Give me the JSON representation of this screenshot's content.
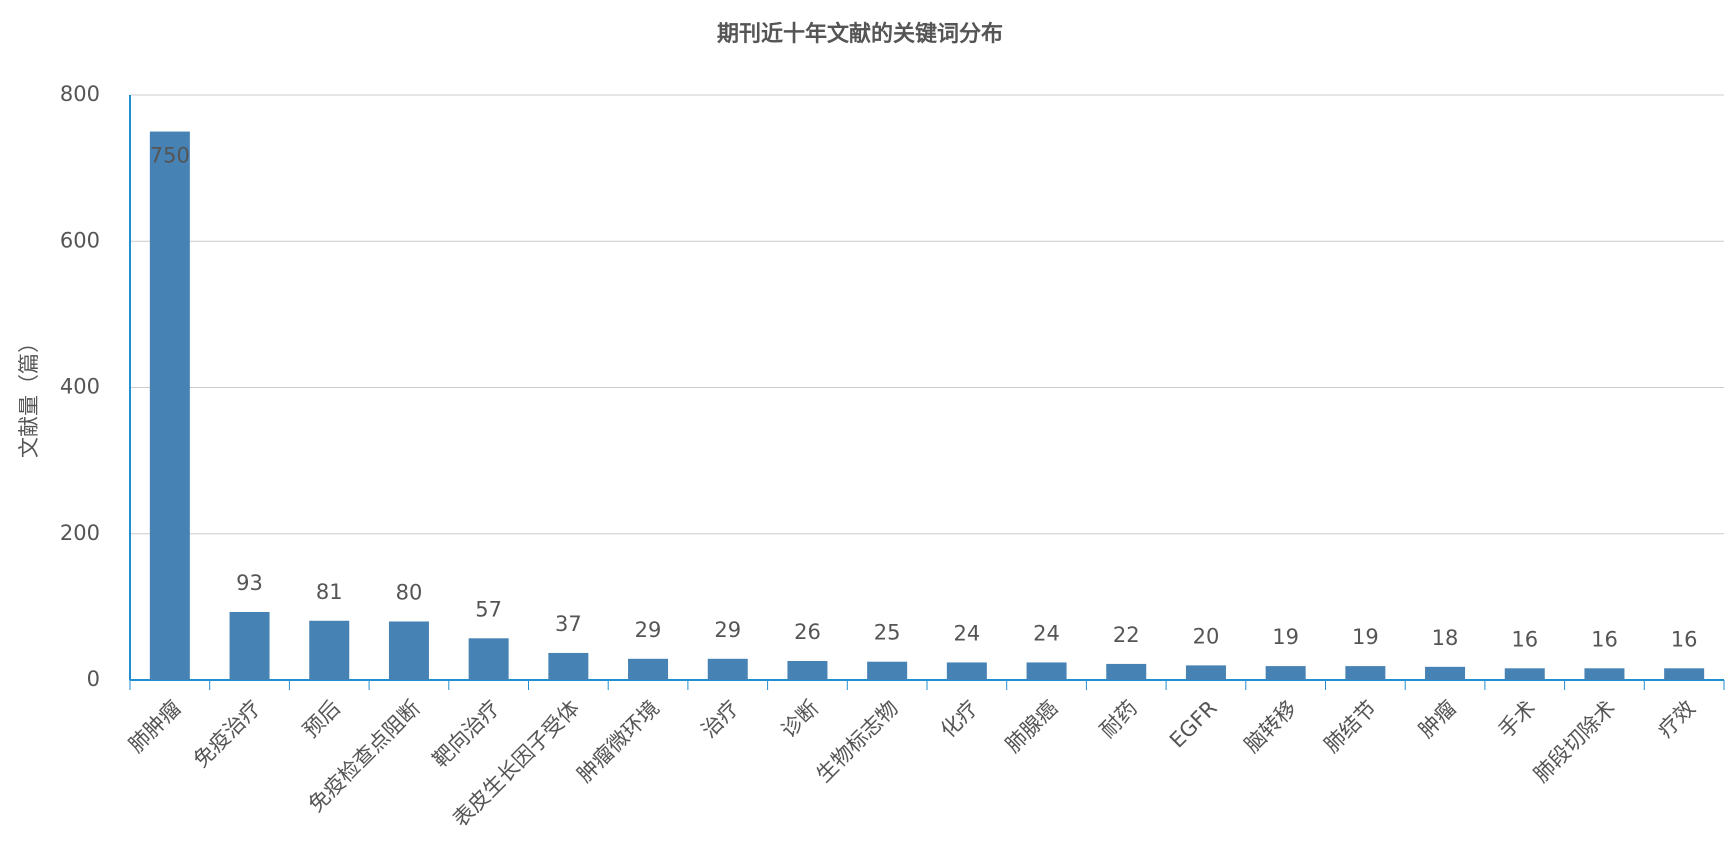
{
  "chart_data": {
    "type": "bar",
    "title": "期刊近十年文献的关键词分布",
    "y_label": "文献量（篇）",
    "categories": [
      "肺肿瘤",
      "免疫治疗",
      "预后",
      "免疫检查点阻断",
      "靶向治疗",
      "表皮生长因子受体",
      "肿瘤微环境",
      "治疗",
      "诊断",
      "生物标志物",
      "化疗",
      "肺腺癌",
      "耐药",
      "EGFR",
      "脑转移",
      "肺结节",
      "肿瘤",
      "手术",
      "肺段切除术",
      "疗效"
    ],
    "values": [
      750,
      93,
      81,
      80,
      57,
      37,
      29,
      29,
      26,
      25,
      24,
      24,
      22,
      20,
      19,
      19,
      18,
      16,
      16,
      16
    ],
    "color": "#4682b4",
    "ylim": [
      0,
      800
    ],
    "yticks": [
      0,
      200,
      400,
      600,
      800
    ],
    "grid": true
  }
}
